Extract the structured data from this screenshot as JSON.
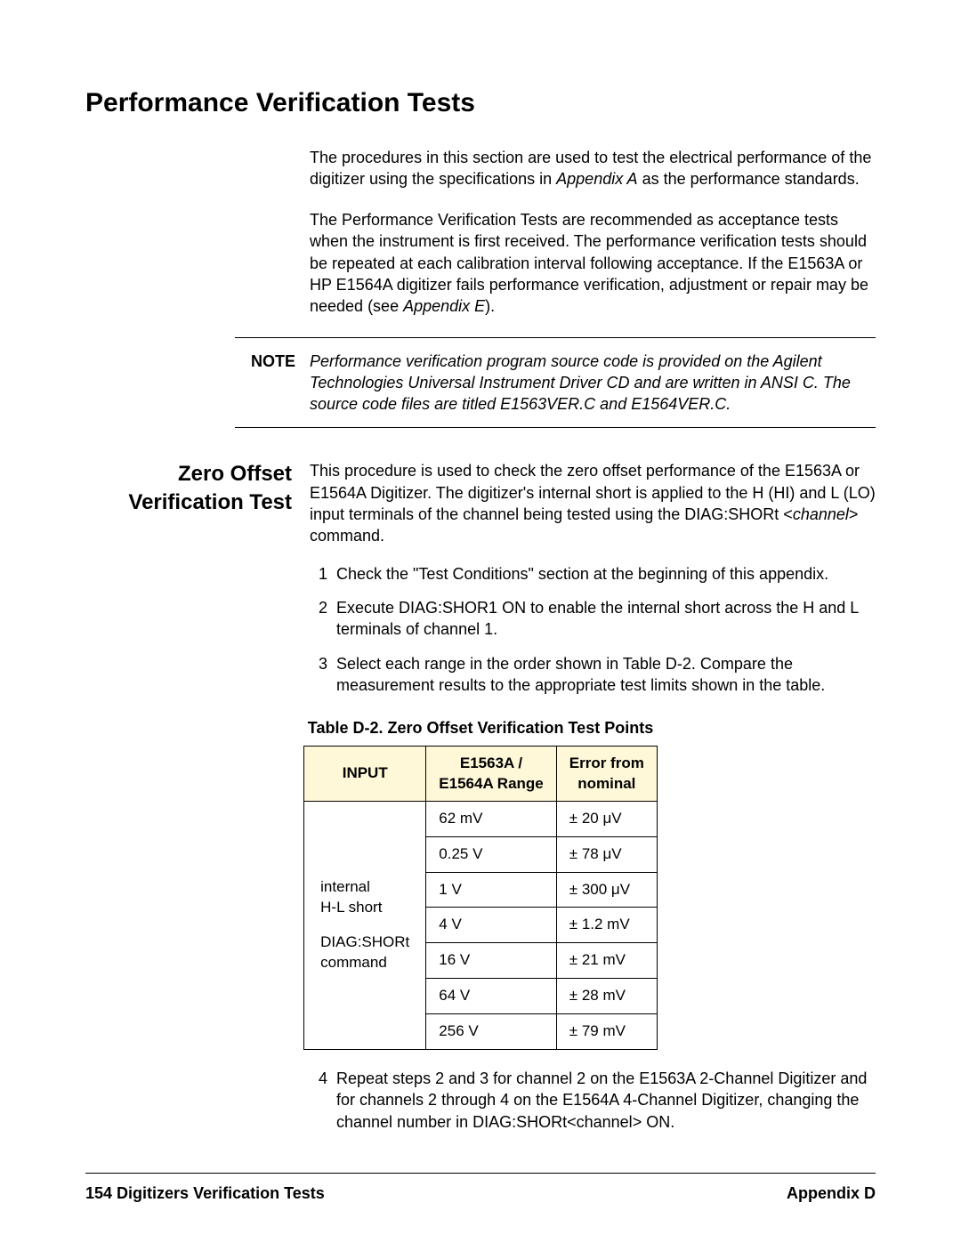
{
  "heading": "Performance Verification Tests",
  "intro": {
    "p1_a": "The procedures in this section are used to test the electrical performance of the digitizer using the specifications in ",
    "p1_i1": "Appendix A",
    "p1_b": " as the performance standards.",
    "p2_a": "The Performance Verification Tests are recommended as acceptance tests when the instrument is first received. The performance verification tests should be repeated at each calibration interval following acceptance. If the E1563A or HP E1564A digitizer fails performance verification, adjustment or repair may be needed (see ",
    "p2_i1": "Appendix E",
    "p2_b": ")."
  },
  "note": {
    "label": "NOTE",
    "text": "Performance verification program source code is provided on the Agilent Technologies Universal Instrument Driver CD and are written in ANSI C. The source code files are titled E1563VER.C and E1564VER.C."
  },
  "zero_offset": {
    "side1": "Zero Offset",
    "side2": "Verification Test",
    "intro_a": "This procedure is used to check the zero offset performance of the E1563A or  E1564A Digitizer. The digitizer's internal short is applied to the H (HI) and L (LO) input terminals of the channel being tested using the DIAG:SHORt <",
    "intro_i": "channel",
    "intro_b": "> command.",
    "steps": {
      "n1": "1",
      "t1": "Check the \"Test Conditions\" section at the beginning of this appendix.",
      "n2": "2",
      "t2": "Execute DIAG:SHOR1 ON to enable the internal short across the H and L terminals of channel 1.",
      "n3": "3",
      "t3": "Select each range in the order shown in Table D-2. Compare the measurement results to the appropriate test limits shown in the table.",
      "n4": "4",
      "t4_a": "Repeat steps 2 and 3 for channel 2 on the E1563A 2-Channel Digitizer and for channels 2 through 4 on the E1564A 4-Channel Digitizer, changing the channel number in DIAG:SHORt<",
      "t4_i": "channel",
      "t4_b": "> ON."
    }
  },
  "table": {
    "caption": "Table D-2. Zero Offset Verification Test Points",
    "header": {
      "c1": "INPUT",
      "c2_l1": "E1563A /",
      "c2_l2": "E1564A Range",
      "c3_l1": "Error from",
      "c3_l2": "nominal"
    },
    "input_cell": {
      "l1": "internal",
      "l2": "H-L short",
      "l3": "DIAG:SHORt",
      "l4": "command"
    },
    "rows": [
      {
        "range": "62 mV",
        "err": "± 20 μV"
      },
      {
        "range": "0.25 V",
        "err": "± 78 μV"
      },
      {
        "range": "1 V",
        "err": "± 300 μV"
      },
      {
        "range": "4 V",
        "err": "± 1.2 mV"
      },
      {
        "range": "16 V",
        "err": "± 21 mV"
      },
      {
        "range": "64 V",
        "err": "± 28 mV"
      },
      {
        "range": "256 V",
        "err": "± 79 mV"
      }
    ]
  },
  "footer": {
    "left_page": "154",
    "left_text": " Digitizers Verification Tests",
    "right": "Appendix D"
  },
  "style": {
    "header_bg": "#fef8d8"
  }
}
